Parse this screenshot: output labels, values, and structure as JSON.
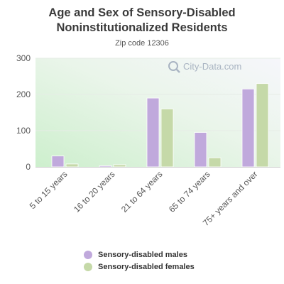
{
  "chart_data": {
    "type": "bar",
    "title_line1": "Age and Sex of Sensory-Disabled",
    "title_line2": "Noninstitutionalized Residents",
    "subtitle": "Zip code 12306",
    "categories": [
      "5 to 15 years",
      "16 to 20 years",
      "21 to 64 years",
      "65 to 74 years",
      "75+ years and over"
    ],
    "series": [
      {
        "name": "Sensory-disabled males",
        "color": "#c0a9dc",
        "values": [
          30,
          3,
          190,
          95,
          215
        ]
      },
      {
        "name": "Sensory-disabled females",
        "color": "#c5d9a8",
        "values": [
          8,
          6,
          160,
          25,
          230
        ]
      }
    ],
    "ylim": [
      0,
      300
    ],
    "yticks": [
      "0",
      "100",
      "200",
      "300"
    ],
    "grid": true,
    "legend_position": "bottom"
  },
  "watermark": {
    "text": "City-Data.com",
    "icon": "magnifier-icon"
  }
}
